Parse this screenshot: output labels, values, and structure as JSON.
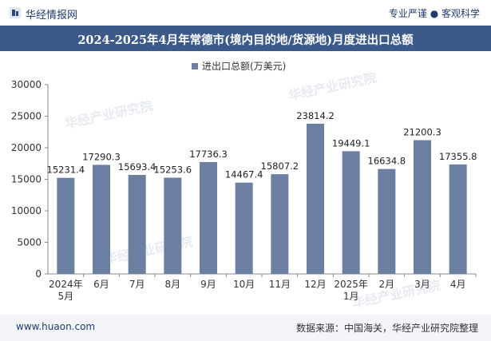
{
  "header": {
    "brand": "华经情报网",
    "tagline": "专业严谨 ● 客观科学"
  },
  "title": "2024-2025年4月年常德市(境内目的地/货源地)月度进出口总额",
  "footer": {
    "url": "www.huaon.com",
    "source": "数据来源：中国海关，华经产业研究院整理"
  },
  "watermark": "华经产业研究院",
  "colors": {
    "bar": "#6b7fa3",
    "title_bg": "#3b5a8a",
    "brand": "#1f3b6d"
  },
  "chart_data": {
    "type": "bar",
    "categories": [
      "2024年\n5月",
      "6月",
      "7月",
      "8月",
      "9月",
      "10月",
      "11月",
      "12月",
      "2025年\n1月",
      "2月",
      "3月",
      "4月"
    ],
    "series": [
      {
        "name": "进出口总额(万美元)",
        "values": [
          15231.4,
          17290.3,
          15693.4,
          15253.6,
          17736.3,
          14467.4,
          15807.2,
          23814.2,
          19449.1,
          16634.8,
          21200.3,
          17355.8
        ]
      }
    ],
    "ylim": [
      0,
      30000
    ],
    "yticks": [
      0,
      5000,
      10000,
      15000,
      20000,
      25000,
      30000
    ],
    "legend_position": "top-center",
    "grid": false
  }
}
